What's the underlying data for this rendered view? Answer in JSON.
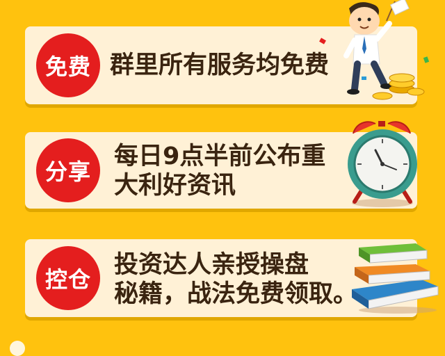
{
  "cards": [
    {
      "badge": "免费",
      "lines": [
        "群里所有服务均免费"
      ]
    },
    {
      "badge": "分享",
      "lines": [
        "每日9点半前公布重",
        "大利好资讯"
      ]
    },
    {
      "badge": "控仓",
      "lines": [
        "投资达人亲授操盘",
        "秘籍，战法免费领取。"
      ]
    }
  ],
  "colors": {
    "background": "#FFC20E",
    "card": "#FFF1D6",
    "badge": "#E41E1E",
    "text": "#3A2410"
  },
  "icons": [
    "businessman-with-coins-icon",
    "alarm-clock-icon",
    "book-stack-icon"
  ]
}
